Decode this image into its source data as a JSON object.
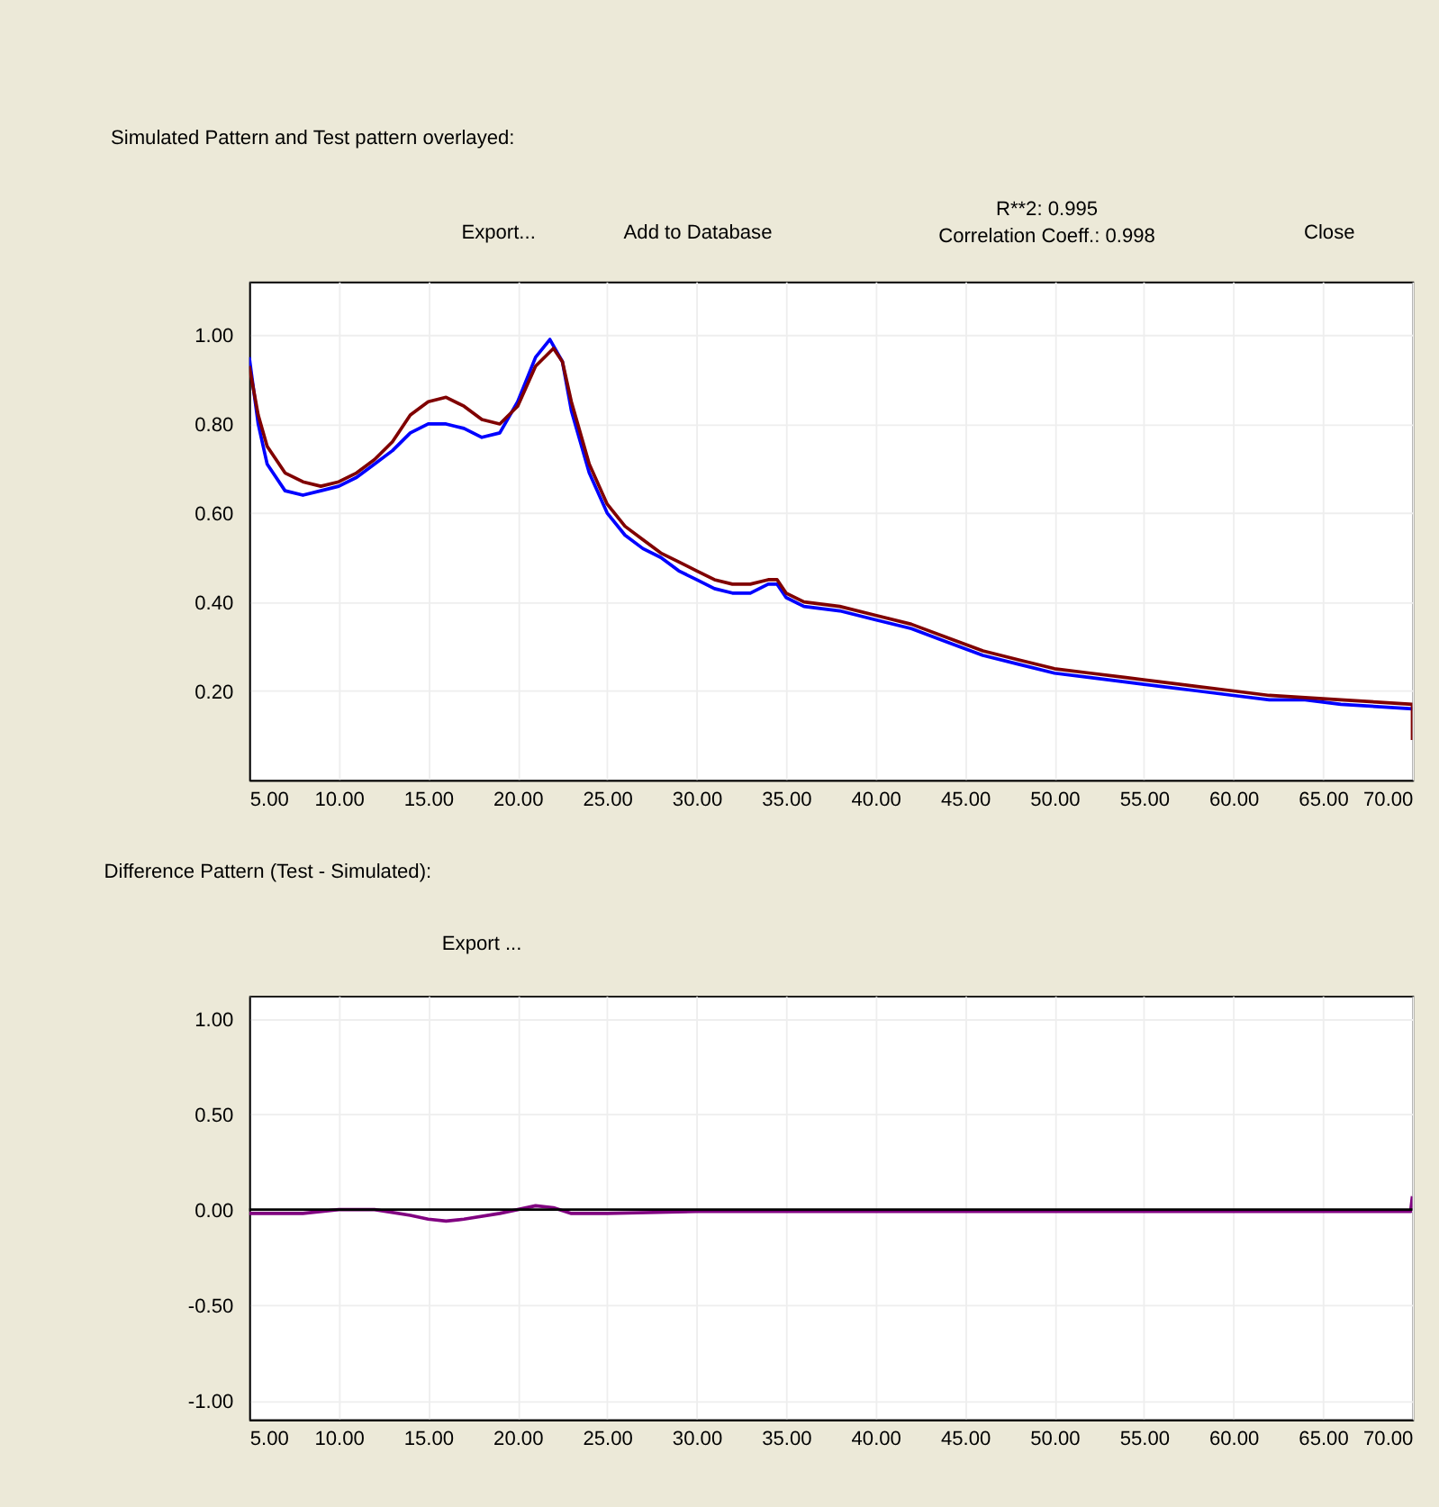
{
  "chart_data": [
    {
      "type": "line",
      "title": "Simulated Pattern and Test pattern overlayed:",
      "grid": true,
      "annotations": [
        "Export...",
        "Add to Database",
        "R**2: 0.995",
        "Correlation Coeff.: 0.998",
        "Close"
      ],
      "xlim": [
        5,
        70
      ],
      "ylim": [
        0,
        1.12
      ],
      "xticks": [
        {
          "value": 5,
          "label": "5.00"
        },
        {
          "value": 10,
          "label": "10.00"
        },
        {
          "value": 15,
          "label": "15.00"
        },
        {
          "value": 20,
          "label": "20.00"
        },
        {
          "value": 25,
          "label": "25.00"
        },
        {
          "value": 30,
          "label": "30.00"
        },
        {
          "value": 35,
          "label": "35.00"
        },
        {
          "value": 40,
          "label": "40.00"
        },
        {
          "value": 45,
          "label": "45.00"
        },
        {
          "value": 50,
          "label": "50.00"
        },
        {
          "value": 55,
          "label": "55.00"
        },
        {
          "value": 60,
          "label": "60.00"
        },
        {
          "value": 65,
          "label": "65.00"
        },
        {
          "value": 70,
          "label": "70.00"
        }
      ],
      "yticks": [
        {
          "value": 0.2,
          "label": "0.20"
        },
        {
          "value": 0.4,
          "label": "0.40"
        },
        {
          "value": 0.6,
          "label": "0.60"
        },
        {
          "value": 0.8,
          "label": "0.80"
        },
        {
          "value": 1.0,
          "label": "1.00"
        }
      ],
      "series": [
        {
          "color": "#0000ff",
          "x": [
            5,
            5.5,
            6,
            7,
            8,
            9,
            10,
            11,
            12,
            13,
            14,
            15,
            16,
            17,
            18,
            19,
            20,
            21,
            21.8,
            22.5,
            23,
            24,
            25,
            26,
            27,
            28,
            29,
            30,
            31,
            32,
            33,
            34,
            34.5,
            35,
            36,
            38,
            40,
            42,
            44,
            46,
            48,
            50,
            52,
            54,
            56,
            58,
            60,
            62,
            64,
            66,
            68,
            70
          ],
          "values": [
            0.95,
            0.8,
            0.71,
            0.65,
            0.64,
            0.65,
            0.66,
            0.68,
            0.71,
            0.74,
            0.78,
            0.8,
            0.8,
            0.79,
            0.77,
            0.78,
            0.85,
            0.95,
            0.99,
            0.94,
            0.83,
            0.69,
            0.6,
            0.55,
            0.52,
            0.5,
            0.47,
            0.45,
            0.43,
            0.42,
            0.42,
            0.44,
            0.44,
            0.41,
            0.39,
            0.38,
            0.36,
            0.34,
            0.31,
            0.28,
            0.26,
            0.24,
            0.23,
            0.22,
            0.21,
            0.2,
            0.19,
            0.18,
            0.18,
            0.17,
            0.165,
            0.16
          ]
        },
        {
          "color": "#800000",
          "x": [
            5,
            5.5,
            6,
            7,
            8,
            9,
            10,
            11,
            12,
            13,
            14,
            15,
            16,
            17,
            18,
            19,
            20,
            21,
            22,
            22.5,
            23,
            24,
            25,
            26,
            27,
            28,
            29,
            30,
            31,
            32,
            33,
            34,
            34.5,
            35,
            36,
            38,
            40,
            42,
            44,
            46,
            48,
            50,
            52,
            54,
            56,
            58,
            60,
            62,
            64,
            66,
            68,
            70,
            70
          ],
          "values": [
            0.93,
            0.82,
            0.75,
            0.69,
            0.67,
            0.66,
            0.67,
            0.69,
            0.72,
            0.76,
            0.82,
            0.85,
            0.86,
            0.84,
            0.81,
            0.8,
            0.84,
            0.93,
            0.97,
            0.94,
            0.85,
            0.71,
            0.62,
            0.57,
            0.54,
            0.51,
            0.49,
            0.47,
            0.45,
            0.44,
            0.44,
            0.45,
            0.45,
            0.42,
            0.4,
            0.39,
            0.37,
            0.35,
            0.32,
            0.29,
            0.27,
            0.25,
            0.24,
            0.23,
            0.22,
            0.21,
            0.2,
            0.19,
            0.185,
            0.18,
            0.175,
            0.17,
            0.09
          ]
        }
      ]
    },
    {
      "type": "line",
      "title": "Difference Pattern (Test - Simulated):",
      "grid": true,
      "annotations": [
        "Export ..."
      ],
      "xlim": [
        5,
        70
      ],
      "ylim": [
        -1.1,
        1.12
      ],
      "xticks": [
        {
          "value": 5,
          "label": "5.00"
        },
        {
          "value": 10,
          "label": "10.00"
        },
        {
          "value": 15,
          "label": "15.00"
        },
        {
          "value": 20,
          "label": "20.00"
        },
        {
          "value": 25,
          "label": "25.00"
        },
        {
          "value": 30,
          "label": "30.00"
        },
        {
          "value": 35,
          "label": "35.00"
        },
        {
          "value": 40,
          "label": "40.00"
        },
        {
          "value": 45,
          "label": "45.00"
        },
        {
          "value": 50,
          "label": "50.00"
        },
        {
          "value": 55,
          "label": "55.00"
        },
        {
          "value": 60,
          "label": "60.00"
        },
        {
          "value": 65,
          "label": "65.00"
        },
        {
          "value": 70,
          "label": "70.00"
        }
      ],
      "yticks": [
        {
          "value": -1.0,
          "label": "-1.00"
        },
        {
          "value": -0.5,
          "label": "-0.50"
        },
        {
          "value": 0,
          "label": "0.00"
        },
        {
          "value": 0.5,
          "label": "0.50"
        },
        {
          "value": 1.0,
          "label": "1.00"
        }
      ],
      "ref_lines": [
        {
          "axis": "y",
          "value": 0,
          "color": "#000000"
        }
      ],
      "series": [
        {
          "color": "#800080",
          "x": [
            5,
            8,
            10,
            12,
            14,
            15,
            16,
            17,
            19,
            20,
            21,
            22,
            23,
            25,
            30,
            40,
            50,
            60,
            69.9,
            70
          ],
          "values": [
            -0.02,
            -0.02,
            0.0,
            0.0,
            -0.03,
            -0.05,
            -0.06,
            -0.05,
            -0.02,
            0.0,
            0.02,
            0.01,
            -0.02,
            -0.02,
            -0.01,
            -0.01,
            -0.01,
            -0.01,
            -0.01,
            0.07
          ]
        }
      ]
    }
  ]
}
